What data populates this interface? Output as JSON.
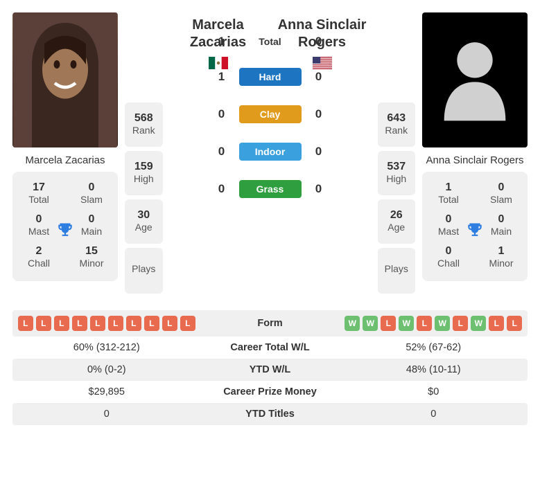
{
  "colors": {
    "pill_hard": "#1d74c1",
    "pill_clay": "#e09a1c",
    "pill_indoor": "#3aa0de",
    "pill_grass": "#2e9e3f",
    "chip_w": "#6ec071",
    "chip_l": "#e86a4f",
    "trophy": "#2e7de0",
    "card_bg": "#f0f0f0"
  },
  "p1": {
    "name_full": "Marcela Zacarias",
    "name_line1": "Marcela",
    "name_line2": "Zacarias",
    "flag": "mx",
    "trophies": {
      "total": {
        "val": "17",
        "lbl": "Total"
      },
      "slam": {
        "val": "0",
        "lbl": "Slam"
      },
      "mast": {
        "val": "0",
        "lbl": "Mast"
      },
      "main": {
        "val": "0",
        "lbl": "Main"
      },
      "chall": {
        "val": "2",
        "lbl": "Chall"
      },
      "minor": {
        "val": "15",
        "lbl": "Minor"
      }
    },
    "rank": {
      "val": "568",
      "lbl": "Rank"
    },
    "high": {
      "val": "159",
      "lbl": "High"
    },
    "age": {
      "val": "30",
      "lbl": "Age"
    },
    "plays": {
      "val": "",
      "lbl": "Plays"
    }
  },
  "p2": {
    "name_full": "Anna Sinclair Rogers",
    "name_line1": "Anna Sinclair",
    "name_line2": "Rogers",
    "flag": "us",
    "trophies": {
      "total": {
        "val": "1",
        "lbl": "Total"
      },
      "slam": {
        "val": "0",
        "lbl": "Slam"
      },
      "mast": {
        "val": "0",
        "lbl": "Mast"
      },
      "main": {
        "val": "0",
        "lbl": "Main"
      },
      "chall": {
        "val": "0",
        "lbl": "Chall"
      },
      "minor": {
        "val": "1",
        "lbl": "Minor"
      }
    },
    "rank": {
      "val": "643",
      "lbl": "Rank"
    },
    "high": {
      "val": "537",
      "lbl": "High"
    },
    "age": {
      "val": "26",
      "lbl": "Age"
    },
    "plays": {
      "val": "",
      "lbl": "Plays"
    }
  },
  "h2h": {
    "total": {
      "p1": "1",
      "lbl": "Total",
      "p2": "0"
    },
    "hard": {
      "p1": "1",
      "lbl": "Hard",
      "p2": "0",
      "color": "#1d74c1"
    },
    "clay": {
      "p1": "0",
      "lbl": "Clay",
      "p2": "0",
      "color": "#e09a1c"
    },
    "indoor": {
      "p1": "0",
      "lbl": "Indoor",
      "p2": "0",
      "color": "#3aa0de"
    },
    "grass": {
      "p1": "0",
      "lbl": "Grass",
      "p2": "0",
      "color": "#2e9e3f"
    }
  },
  "table": {
    "rows": [
      {
        "label": "Form",
        "type": "form",
        "p1": [
          "L",
          "L",
          "L",
          "L",
          "L",
          "L",
          "L",
          "L",
          "L",
          "L"
        ],
        "p2": [
          "W",
          "W",
          "L",
          "W",
          "L",
          "W",
          "L",
          "W",
          "L",
          "L"
        ]
      },
      {
        "label": "Career Total W/L",
        "p1": "60% (312-212)",
        "p2": "52% (67-62)"
      },
      {
        "label": "YTD W/L",
        "p1": "0% (0-2)",
        "p2": "48% (10-11)"
      },
      {
        "label": "Career Prize Money",
        "p1": "$29,895",
        "p2": "$0"
      },
      {
        "label": "YTD Titles",
        "p1": "0",
        "p2": "0"
      }
    ]
  }
}
